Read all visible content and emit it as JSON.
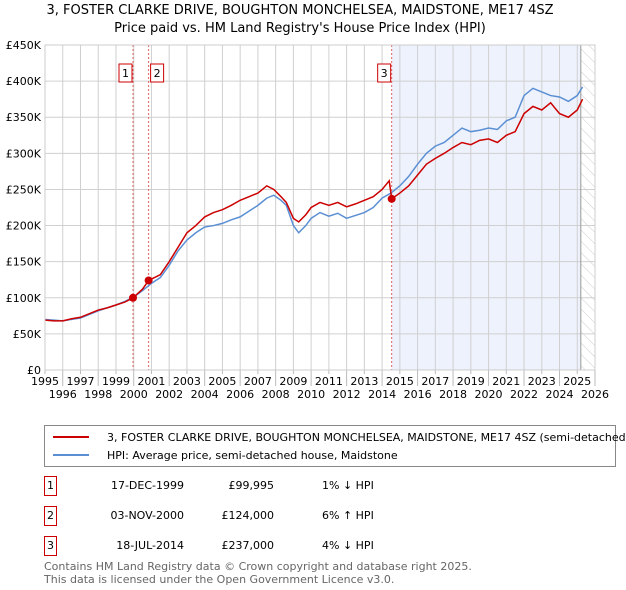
{
  "chart_data": {
    "type": "line",
    "title": "3, FOSTER CLARKE DRIVE, BOUGHTON MONCHELSEA, MAIDSTONE, ME17 4SZ",
    "subtitle": "Price paid vs. HM Land Registry's House Price Index (HPI)",
    "xlim": [
      1995,
      2026
    ],
    "ylim": [
      0,
      450000
    ],
    "x_ticks": [
      "1995",
      "1996",
      "1997",
      "1998",
      "1999",
      "2000",
      "2001",
      "2002",
      "2003",
      "2004",
      "2005",
      "2006",
      "2007",
      "2008",
      "2009",
      "2010",
      "2011",
      "2012",
      "2013",
      "2014",
      "2015",
      "2016",
      "2017",
      "2018",
      "2019",
      "2020",
      "2021",
      "2022",
      "2023",
      "2024",
      "2025",
      "2026"
    ],
    "y_ticks": [
      {
        "v": 0,
        "label": "£0"
      },
      {
        "v": 50000,
        "label": "£50K"
      },
      {
        "v": 100000,
        "label": "£100K"
      },
      {
        "v": 150000,
        "label": "£150K"
      },
      {
        "v": 200000,
        "label": "£200K"
      },
      {
        "v": 250000,
        "label": "£250K"
      },
      {
        "v": 300000,
        "label": "£300K"
      },
      {
        "v": 350000,
        "label": "£350K"
      },
      {
        "v": 400000,
        "label": "£400K"
      },
      {
        "v": 450000,
        "label": "£450K"
      }
    ],
    "colors": {
      "property": "#cc0000",
      "hpi": "#5b8fd4"
    },
    "series": [
      {
        "name": "3, FOSTER CLARKE DRIVE, BOUGHTON MONCHELSEA, MAIDSTONE, ME17 4SZ (semi-detached",
        "x": [
          1995,
          1995.5,
          1996,
          1996.5,
          1997,
          1997.5,
          1998,
          1998.5,
          1999,
          1999.5,
          1999.96,
          2000.5,
          2000.84,
          2001.5,
          2002,
          2002.5,
          2003,
          2003.5,
          2004,
          2004.5,
          2005,
          2005.5,
          2006,
          2006.5,
          2007,
          2007.5,
          2007.9,
          2008.3,
          2008.6,
          2009,
          2009.3,
          2009.7,
          2010,
          2010.5,
          2011,
          2011.5,
          2012,
          2012.5,
          2013,
          2013.5,
          2014,
          2014.4,
          2014.54,
          2015,
          2015.5,
          2016,
          2016.5,
          2017,
          2017.5,
          2018,
          2018.5,
          2019,
          2019.5,
          2020,
          2020.5,
          2021,
          2021.5,
          2022,
          2022.5,
          2023,
          2023.5,
          2024,
          2024.5,
          2025,
          2025.3
        ],
        "y": [
          69000,
          68000,
          68000,
          71000,
          73000,
          78000,
          83000,
          86000,
          90000,
          94000,
          99995,
          112000,
          124000,
          132000,
          150000,
          170000,
          190000,
          200000,
          212000,
          218000,
          222000,
          228000,
          235000,
          240000,
          245000,
          255000,
          250000,
          240000,
          232000,
          210000,
          205000,
          215000,
          225000,
          232000,
          228000,
          232000,
          226000,
          230000,
          235000,
          240000,
          250000,
          262000,
          237000,
          245000,
          255000,
          270000,
          285000,
          293000,
          300000,
          308000,
          315000,
          312000,
          318000,
          320000,
          315000,
          325000,
          330000,
          355000,
          365000,
          360000,
          370000,
          355000,
          350000,
          360000,
          375000
        ]
      },
      {
        "name": "HPI: Average price, semi-detached house, Maidstone",
        "x": [
          1995,
          1995.5,
          1996,
          1996.5,
          1997,
          1997.5,
          1998,
          1998.5,
          1999,
          1999.5,
          2000,
          2000.5,
          2001,
          2001.5,
          2002,
          2002.5,
          2003,
          2003.5,
          2004,
          2004.5,
          2005,
          2005.5,
          2006,
          2006.5,
          2007,
          2007.5,
          2007.9,
          2008.3,
          2008.6,
          2009,
          2009.3,
          2009.7,
          2010,
          2010.5,
          2011,
          2011.5,
          2012,
          2012.5,
          2013,
          2013.5,
          2014,
          2014.5,
          2015,
          2015.5,
          2016,
          2016.5,
          2017,
          2017.5,
          2018,
          2018.5,
          2019,
          2019.5,
          2020,
          2020.5,
          2021,
          2021.5,
          2022,
          2022.5,
          2023,
          2023.5,
          2024,
          2024.5,
          2025,
          2025.3
        ],
        "y": [
          70000,
          69000,
          68000,
          70000,
          72000,
          77000,
          82000,
          86000,
          90000,
          95000,
          101000,
          110000,
          120000,
          128000,
          145000,
          165000,
          180000,
          190000,
          198000,
          200000,
          203000,
          208000,
          212000,
          220000,
          228000,
          238000,
          242000,
          235000,
          228000,
          200000,
          190000,
          200000,
          210000,
          218000,
          213000,
          217000,
          210000,
          214000,
          218000,
          225000,
          238000,
          245000,
          255000,
          268000,
          285000,
          300000,
          310000,
          315000,
          325000,
          335000,
          330000,
          332000,
          335000,
          333000,
          345000,
          350000,
          380000,
          390000,
          385000,
          380000,
          378000,
          372000,
          380000,
          392000
        ]
      }
    ],
    "sales": [
      {
        "id": "1",
        "x": 1999.96,
        "y": 99995
      },
      {
        "id": "2",
        "x": 2000.84,
        "y": 124000
      },
      {
        "id": "3",
        "x": 2014.54,
        "y": 237000
      }
    ],
    "shaded_span": [
      2014.54,
      2025.2
    ],
    "hatched_from": 2025.2
  },
  "legend": {
    "property": "3, FOSTER CLARKE DRIVE, BOUGHTON MONCHELSEA, MAIDSTONE, ME17 4SZ (semi-detached",
    "hpi": "HPI: Average price, semi-detached house, Maidstone"
  },
  "table": [
    {
      "num": "1",
      "date": "17-DEC-1999",
      "price": "£99,995",
      "hpi": "1% ↓ HPI"
    },
    {
      "num": "2",
      "date": "03-NOV-2000",
      "price": "£124,000",
      "hpi": "6% ↑ HPI"
    },
    {
      "num": "3",
      "date": "18-JUL-2014",
      "price": "£237,000",
      "hpi": "4% ↓ HPI"
    }
  ],
  "footer": {
    "line1": "Contains HM Land Registry data © Crown copyright and database right 2025.",
    "line2": "This data is licensed under the Open Government Licence v3.0."
  }
}
